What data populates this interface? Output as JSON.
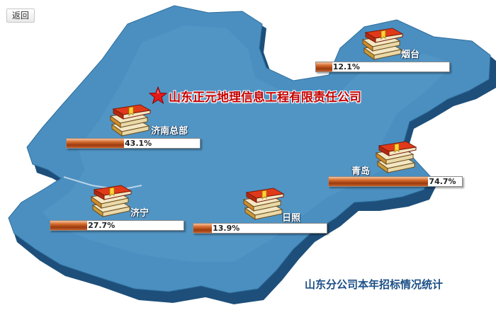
{
  "toolbar": {
    "back_label": "返回"
  },
  "company": {
    "name": "山东正元地理信息工程有限责任公司"
  },
  "footer": {
    "caption": "山东分公司本年招标情况统计"
  },
  "colors": {
    "map_fill": "#4a8fc0",
    "map_shadow": "#1d4f7a",
    "bar_fill": "#b8501d",
    "company_red": "#c40000"
  },
  "sites": [
    {
      "name": "烟台",
      "value": 12.1,
      "label": "12.1%"
    },
    {
      "name": "济南总部",
      "value": 43.1,
      "label": "43.1%"
    },
    {
      "name": "青岛",
      "value": 74.7,
      "label": "74.7%"
    },
    {
      "name": "济宁",
      "value": 27.7,
      "label": "27.7%"
    },
    {
      "name": "日照",
      "value": 13.9,
      "label": "13.9%"
    }
  ]
}
